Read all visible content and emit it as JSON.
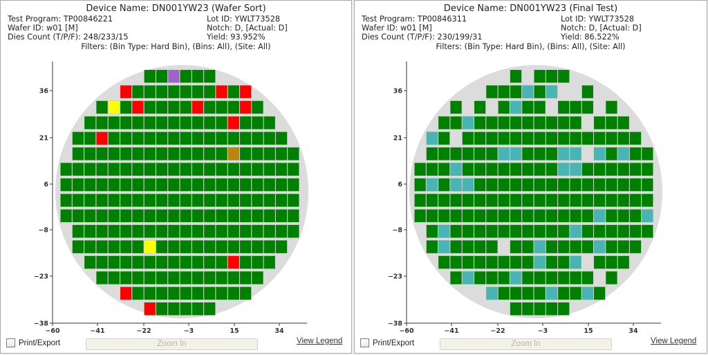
{
  "colors": {
    "pass": "#008000",
    "fail_red": "#ff0000",
    "fail_yellow": "#ffff00",
    "fail_purple": "#a064c8",
    "fail_brown": "#b8860b",
    "fail_teal": "#48b4b4",
    "wafer": "#dcdcdc"
  },
  "panels": [
    {
      "title": "Device Name: DN001YW23 (Wafer Sort)",
      "test_program": "Test Program: TP00846221",
      "lot_id": "Lot ID: YWLT73528",
      "wafer_id": "Wafer ID: w01 [M]",
      "notch": "Notch: D, [Actual: D]",
      "dies_count": "Dies Count (T/P/F): 248/233/15",
      "yield": "Yield: 93.952%",
      "filters": "Filters: (Bin Type: Hard Bin), (Bins: All), (Site: All)",
      "print_label": "Print/Export",
      "zoom_label": "Zoom In",
      "legend_label": "View Legend",
      "x_ticks": [
        "-60",
        "-41",
        "-22",
        "-3",
        "15",
        "34"
      ],
      "y_ticks": [
        "36",
        "21",
        "6",
        "-8",
        "-23",
        "-38"
      ],
      "rows": [
        {
          "start": 7,
          "cells": "GGPGGG"
        },
        {
          "start": 5,
          "cells": "RGGGGGGGRGR"
        },
        {
          "start": 3,
          "cells": "GYGRGGGGRGGGRG"
        },
        {
          "start": 2,
          "cells": "GGGGGGGGGGGGRGGG"
        },
        {
          "start": 1,
          "cells": "GGRGGGGGGGGGGGGGGG"
        },
        {
          "start": 1,
          "cells": "GGGGGGGGGGGGGBGGGGG"
        },
        {
          "start": 0,
          "cells": "GGGGGGGGGGGGGGGGGGGG"
        },
        {
          "start": 0,
          "cells": "GGGGGGGGGGGGGGGGGGGG"
        },
        {
          "start": 0,
          "cells": "GGGGGGGGGGGGGGGGGGGG"
        },
        {
          "start": 0,
          "cells": "GGGGGGGGGGGGGGGGGGGG"
        },
        {
          "start": 1,
          "cells": "GGGGGGGGGGGGGGGGGGG"
        },
        {
          "start": 1,
          "cells": "GGGGGGYGGGGGGGGGGG"
        },
        {
          "start": 2,
          "cells": "GGGGGGGGGGGGRGGG"
        },
        {
          "start": 3,
          "cells": "GGGGGGGGGGGGGG"
        },
        {
          "start": 5,
          "cells": "RGGGGGGGGGG"
        },
        {
          "start": 7,
          "cells": "RGGGGG"
        }
      ]
    },
    {
      "title": "Device Name: DN001YW23 (Final Test)",
      "test_program": "Test Program: TP00846311",
      "lot_id": "Lot ID: YWLT73528",
      "wafer_id": "Wafer ID: w01 [M]",
      "notch": "Notch: D, [Actual: D]",
      "dies_count": "Dies Count (T/P/F): 230/199/31",
      "yield": "Yield: 86.522%",
      "filters": "Filters: (Bin Type: Hard Bin), (Bins: All), (Site: All)",
      "print_label": "Print/Export",
      "zoom_label": "Zoom In",
      "legend_label": "View Legend",
      "x_ticks": [
        "-60",
        "-41",
        "-22",
        "-3",
        "15",
        "34"
      ],
      "y_ticks": [
        "36",
        "21",
        "6",
        "-8",
        "-23",
        "-38"
      ],
      "rows": [
        {
          "start": 8,
          "cells": "G.GGG"
        },
        {
          "start": 6,
          "cells": "GGGTGT..G"
        },
        {
          "start": 3,
          "cells": "G.G.GTGG.GGG.G"
        },
        {
          "start": 2,
          "cells": "GGTGGGGGGGGG.GGG"
        },
        {
          "start": 1,
          "cells": "TG.GGGGGGGGGGGGGGG"
        },
        {
          "start": 1,
          "cells": "GGGGGGTTGGGTT.TGTGG"
        },
        {
          "start": 0,
          "cells": "GGGTGGGGGGGGTTGGGGGG"
        },
        {
          "start": 0,
          "cells": "GTGTTGGGGGGGGGGGGGGG"
        },
        {
          "start": 0,
          "cells": "GGGGGGGGGGGGGGGGGGGG"
        },
        {
          "start": 0,
          "cells": "GGGGGGGGGGGGGGGTGGGT"
        },
        {
          "start": 1,
          "cells": "GTGGGGGGGGGGTGGGGGG"
        },
        {
          "start": 1,
          "cells": "GTGGGG.GGTGGGGTGGG"
        },
        {
          "start": 2,
          "cells": "GGGGGGGGTGGT.GGG"
        },
        {
          "start": 3,
          "cells": "GTGGGTGGGGGG.G"
        },
        {
          "start": 6,
          "cells": "TGGGGTGGTG"
        },
        {
          "start": 8,
          "cells": "GGGGG"
        }
      ]
    }
  ]
}
